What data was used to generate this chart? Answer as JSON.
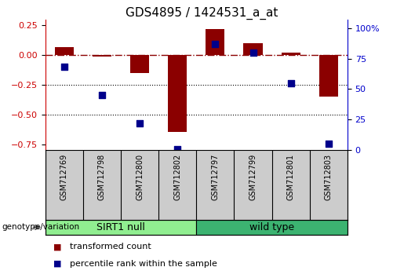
{
  "title": "GDS4895 / 1424531_a_at",
  "samples": [
    "GSM712769",
    "GSM712798",
    "GSM712800",
    "GSM712802",
    "GSM712797",
    "GSM712799",
    "GSM712801",
    "GSM712803"
  ],
  "red_values": [
    0.07,
    -0.01,
    -0.15,
    -0.65,
    0.22,
    0.1,
    0.02,
    -0.35
  ],
  "blue_values": [
    68,
    45,
    22,
    1,
    87,
    80,
    55,
    5
  ],
  "groups": [
    {
      "label": "SIRT1 null",
      "start": 0,
      "end": 4,
      "color": "#90ee90"
    },
    {
      "label": "wild type",
      "start": 4,
      "end": 8,
      "color": "#3cb371"
    }
  ],
  "ylim_left": [
    -0.8,
    0.3
  ],
  "ylim_right": [
    0,
    107
  ],
  "yticks_left": [
    0.25,
    0.0,
    -0.25,
    -0.5,
    -0.75
  ],
  "yticks_right": [
    100,
    75,
    50,
    25,
    0
  ],
  "hline_y": 0.0,
  "dotted_lines": [
    -0.25,
    -0.5
  ],
  "bar_color": "#8B0000",
  "dot_color": "#00008B",
  "bar_width": 0.5,
  "dot_size": 35,
  "legend_red": "transformed count",
  "legend_blue": "percentile rank within the sample",
  "genotype_label": "genotype/variation",
  "bg_color": "#ffffff",
  "plot_bg": "#ffffff",
  "tick_label_size": 8,
  "title_size": 11,
  "group_label_size": 9,
  "left_tick_color": "#cc0000",
  "right_tick_color": "#0000cc",
  "sample_label_size": 7,
  "legend_fontsize": 8
}
